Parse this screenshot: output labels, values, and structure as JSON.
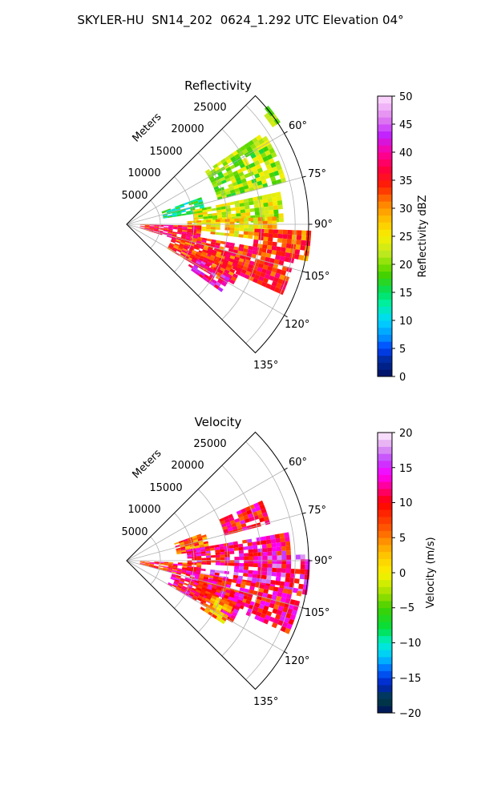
{
  "figure": {
    "title": "SKYLER-HU  SN14_202  0624_1.292 UTC Elevation 04°"
  },
  "panels": [
    {
      "title": "Reflectivity",
      "range_label": "Meters",
      "range_ticks": [
        "5000",
        "10000",
        "15000",
        "20000",
        "25000"
      ],
      "azimuth_ticks": [
        "60°",
        "75°",
        "90°",
        "105°",
        "120°",
        "135°"
      ],
      "colorbar": {
        "label": "Reflectivity dBZ",
        "ticks": [
          "0",
          "5",
          "10",
          "15",
          "20",
          "25",
          "30",
          "35",
          "40",
          "45",
          "50"
        ]
      }
    },
    {
      "title": "Velocity",
      "range_label": "Meters",
      "range_ticks": [
        "5000",
        "10000",
        "15000",
        "20000",
        "25000"
      ],
      "azimuth_ticks": [
        "60°",
        "75°",
        "90°",
        "105°",
        "120°",
        "135°"
      ],
      "colorbar": {
        "label": "Velocity (m/s)",
        "ticks": [
          "−20",
          "−15",
          "−10",
          "−5",
          "0",
          "5",
          "10",
          "15",
          "20"
        ]
      }
    }
  ],
  "chart_data": [
    {
      "type": "heatmap",
      "projection": "polar sector (PPI)",
      "title": "Reflectivity",
      "variable": "reflectivity",
      "units": "dBZ",
      "theta_range_deg": [
        45,
        135
      ],
      "r_range_m": [
        0,
        27000
      ],
      "r_ticks_m": [
        5000,
        10000,
        15000,
        20000,
        25000
      ],
      "theta_ticks_deg": [
        60,
        75,
        90,
        105,
        120,
        135
      ],
      "colorbar_range": [
        0,
        50
      ],
      "grid": true,
      "echo_regions": [
        {
          "az": [
            50,
            56
          ],
          "r": [
            26000,
            27000
          ],
          "value": 20
        },
        {
          "az": [
            56,
            75
          ],
          "r": [
            14000,
            24000
          ],
          "value": 21
        },
        {
          "az": [
            70,
            80
          ],
          "r": [
            5500,
            11500
          ],
          "value": 14
        },
        {
          "az": [
            78,
            89
          ],
          "r": [
            10000,
            23000
          ],
          "value": 23
        },
        {
          "az": [
            87,
            96
          ],
          "r": [
            9000,
            22000
          ],
          "value": 27
        },
        {
          "az": [
            91,
            106
          ],
          "r": [
            2000,
            10500
          ],
          "value": 36
        },
        {
          "az": [
            92,
            101
          ],
          "r": [
            19000,
            27000
          ],
          "value": 33
        },
        {
          "az": [
            100,
            114
          ],
          "r": [
            10000,
            25000
          ],
          "value": 35
        },
        {
          "az": [
            105,
            120
          ],
          "r": [
            7000,
            18000
          ],
          "value": 34
        },
        {
          "az": [
            116,
            125
          ],
          "r": [
            11000,
            17000
          ],
          "value": 40
        }
      ]
    },
    {
      "type": "heatmap",
      "projection": "polar sector (PPI)",
      "title": "Velocity",
      "variable": "velocity",
      "units": "m/s",
      "theta_range_deg": [
        45,
        135
      ],
      "r_range_m": [
        0,
        27000
      ],
      "r_ticks_m": [
        5000,
        10000,
        15000,
        20000,
        25000
      ],
      "theta_ticks_deg": [
        60,
        75,
        90,
        105,
        120,
        135
      ],
      "colorbar_range": [
        -20,
        20
      ],
      "grid": true,
      "echo_regions": [
        {
          "az": [
            66,
            74
          ],
          "r": [
            15000,
            22000
          ],
          "value": 10
        },
        {
          "az": [
            70,
            82
          ],
          "r": [
            7500,
            12000
          ],
          "value": 7
        },
        {
          "az": [
            80,
            92
          ],
          "r": [
            9000,
            24000
          ],
          "value": 11
        },
        {
          "az": [
            88,
            100
          ],
          "r": [
            16000,
            27000
          ],
          "value": 13
        },
        {
          "az": [
            92,
            104
          ],
          "r": [
            2000,
            11000
          ],
          "value": 9
        },
        {
          "az": [
            96,
            106
          ],
          "r": [
            9000,
            15000
          ],
          "value": 14
        },
        {
          "az": [
            100,
            114
          ],
          "r": [
            11000,
            26000
          ],
          "value": 10
        },
        {
          "az": [
            106,
            120
          ],
          "r": [
            7000,
            18000
          ],
          "value": 11
        },
        {
          "az": [
            112,
            122
          ],
          "r": [
            13000,
            17000
          ],
          "value": 4
        }
      ]
    }
  ]
}
